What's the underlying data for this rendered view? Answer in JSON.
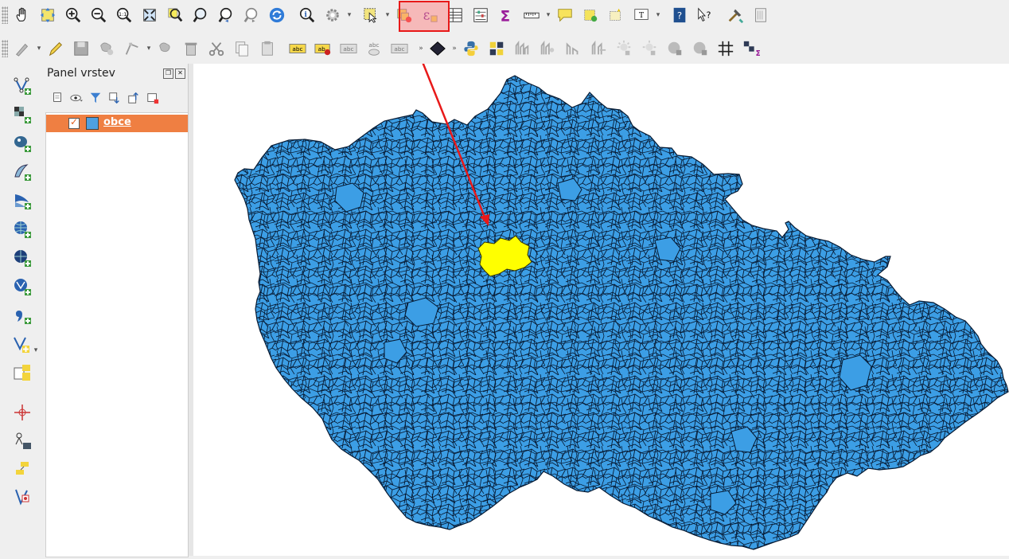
{
  "layers_panel": {
    "title": "Panel vrstev",
    "layers": [
      {
        "name": "obce",
        "checked": true,
        "fill_color": "#4fa0e0"
      }
    ]
  },
  "map": {
    "region_fill": "#3c9ee5",
    "selected_fill": "#ffff00",
    "border_color": "#000000",
    "selected_feature_count": 1
  },
  "toolbar_top": {
    "icons": [
      "pan-icon",
      "pan-to-selection-icon",
      "zoom-in-icon",
      "zoom-out-icon",
      "zoom-native-icon",
      "zoom-full-icon",
      "zoom-to-selection-icon",
      "zoom-to-layer-icon",
      "zoom-last-icon",
      "zoom-next-icon",
      "refresh-icon",
      "identify-icon",
      "action-icon",
      "select-features-icon",
      "select-by-value-icon",
      "deselect-icon",
      "expression-icon",
      "attribute-table-icon",
      "statistics-icon",
      "sum-icon",
      "measure-icon",
      "map-tip-icon",
      "new-bookmark-icon",
      "show-bookmarks-icon",
      "text-annotation-icon",
      "help-icon",
      "whats-this-icon",
      "processing-icon",
      "composer-icon"
    ],
    "highlighted_tool": "select-features-icon"
  },
  "toolbar_second": {
    "icons": [
      "digitize-icon",
      "toggle-editing-icon",
      "save-edits-icon",
      "add-feature-icon",
      "node-tool-icon",
      "move-feature-icon",
      "delete-icon",
      "cut-icon",
      "copy-icon",
      "paste-icon",
      "label-icon",
      "pin-label-icon",
      "show-hide-label-icon",
      "move-label-icon",
      "rotate-label-icon",
      "change-label-icon",
      "python-icon",
      "plugin-icon",
      "raster-icon",
      "grid-icon",
      "sigma-icon"
    ]
  },
  "toolbar_left": {
    "icons": [
      "add-vector-layer-icon",
      "add-raster-layer-icon",
      "add-postgis-layer-icon",
      "add-spatialite-layer-icon",
      "add-mssql-layer-icon",
      "add-wms-layer-icon",
      "add-wcs-layer-icon",
      "add-wfs-layer-icon",
      "add-delimited-text-icon",
      "new-shapefile-icon",
      "new-temp-layer-icon",
      "add-virtual-layer-icon",
      "coordinate-capture-icon",
      "gps-icon",
      "georeferencer-icon"
    ]
  }
}
